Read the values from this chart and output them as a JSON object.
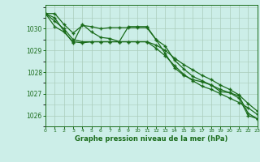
{
  "title": "Graphe pression niveau de la mer (hPa)",
  "background_color": "#cceee8",
  "grid_color": "#aaccbb",
  "line_color": "#1a6b1a",
  "x_hours": [
    0,
    1,
    2,
    3,
    4,
    5,
    6,
    7,
    8,
    9,
    10,
    11,
    12,
    13,
    14,
    15,
    16,
    17,
    18,
    19,
    20,
    21,
    22,
    23
  ],
  "series1": [
    1030.7,
    1030.7,
    1030.2,
    1029.8,
    1030.15,
    1030.1,
    1030.0,
    1030.05,
    1030.05,
    1030.05,
    1030.05,
    1030.05,
    1029.5,
    1029.2,
    1028.55,
    1028.15,
    1027.8,
    1027.6,
    1027.4,
    1027.1,
    1027.05,
    1026.8,
    1026.0,
    1025.85
  ],
  "series2": [
    1030.7,
    1030.35,
    1030.0,
    1029.5,
    1029.4,
    1029.4,
    1029.4,
    1029.4,
    1029.4,
    1029.4,
    1029.4,
    1029.4,
    1029.1,
    1028.75,
    1028.3,
    1027.9,
    1027.6,
    1027.35,
    1027.2,
    1027.0,
    1026.8,
    1026.6,
    1026.35,
    1026.05
  ],
  "series3": [
    1030.7,
    1030.1,
    1029.85,
    1029.4,
    1029.35,
    1029.4,
    1029.4,
    1029.4,
    1029.4,
    1029.4,
    1029.4,
    1029.4,
    1029.25,
    1029.0,
    1028.65,
    1028.35,
    1028.1,
    1027.85,
    1027.65,
    1027.4,
    1027.2,
    1026.95,
    1026.55,
    1026.2
  ],
  "series4": [
    1030.7,
    1030.5,
    1029.9,
    1029.35,
    1030.2,
    1029.85,
    1029.6,
    1029.55,
    1029.4,
    1030.1,
    1030.1,
    1030.1,
    1029.5,
    1028.85,
    1028.2,
    1027.85,
    1027.65,
    1027.55,
    1027.4,
    1027.2,
    1027.05,
    1026.9,
    1026.1,
    1025.85
  ],
  "ylim": [
    1025.5,
    1031.1
  ],
  "yticks": [
    1026,
    1027,
    1028,
    1029,
    1030
  ],
  "xlim": [
    0,
    23
  ],
  "xticks": [
    0,
    1,
    2,
    3,
    4,
    5,
    6,
    7,
    8,
    9,
    10,
    11,
    12,
    13,
    14,
    15,
    16,
    17,
    18,
    19,
    20,
    21,
    22,
    23
  ]
}
